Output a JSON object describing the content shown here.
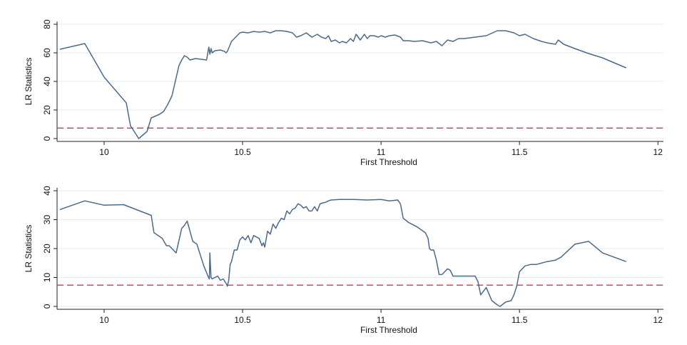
{
  "chart_data": [
    {
      "type": "line",
      "xlabel": "First Threshold",
      "ylabel": "LR Statistics",
      "xlim": [
        9.83,
        12.02
      ],
      "ylim": [
        -2,
        82
      ],
      "xticks": [
        10,
        10.5,
        11,
        11.5,
        12
      ],
      "xtick_labels": [
        "10",
        "10.5",
        "11",
        "11.5",
        "12"
      ],
      "yticks": [
        0,
        20,
        40,
        60,
        80
      ],
      "ytick_labels": [
        "0",
        "20",
        "40",
        "60",
        "80"
      ],
      "grid": true,
      "reference_line": {
        "y": 7.35,
        "style": "dashed",
        "color": "#c8385a"
      },
      "colors": {
        "series": "#4a6a8c"
      },
      "series": [
        {
          "x": [
            9.84,
            9.93,
            10.0,
            10.08,
            10.095,
            10.125,
            10.155,
            10.17,
            10.2,
            10.215,
            10.23,
            10.245,
            10.27,
            10.28,
            10.29,
            10.3,
            10.31,
            10.33,
            10.35,
            10.37,
            10.378,
            10.382,
            10.386,
            10.39,
            10.4,
            10.42,
            10.435,
            10.44,
            10.445,
            10.46,
            10.47,
            10.48,
            10.49,
            10.5,
            10.52,
            10.54,
            10.56,
            10.58,
            10.6,
            10.62,
            10.64,
            10.66,
            10.68,
            10.695,
            10.71,
            10.73,
            10.75,
            10.77,
            10.785,
            10.8,
            10.81,
            10.82,
            10.835,
            10.85,
            10.86,
            10.875,
            10.89,
            10.9,
            10.91,
            10.925,
            10.94,
            10.95,
            10.96,
            10.975,
            10.99,
            11.0,
            11.015,
            11.03,
            11.05,
            11.07,
            11.08,
            11.1,
            11.12,
            11.15,
            11.18,
            11.2,
            11.22,
            11.24,
            11.26,
            11.28,
            11.3,
            11.34,
            11.38,
            11.42,
            11.45,
            11.48,
            11.5,
            11.52,
            11.55,
            11.58,
            11.6,
            11.63,
            11.64,
            11.66,
            11.7,
            11.75,
            11.8,
            11.885
          ],
          "y": [
            62.5,
            66.5,
            43,
            25,
            9,
            0,
            5,
            14.5,
            17,
            19,
            24,
            30,
            51,
            55,
            58,
            57,
            55,
            56,
            55.5,
            55,
            64,
            59,
            63,
            60,
            61.5,
            62,
            61,
            60,
            61,
            68,
            70,
            72,
            74,
            74.5,
            74,
            75,
            74.5,
            75,
            74,
            75.5,
            75.5,
            75,
            74,
            71,
            72,
            74,
            71,
            73,
            71,
            70,
            72,
            68,
            69,
            67,
            68,
            67,
            70,
            68,
            73,
            69,
            73,
            70,
            72,
            72,
            71,
            72,
            71,
            72,
            72.5,
            71,
            68.5,
            68.5,
            68,
            68.5,
            67,
            68,
            65,
            69,
            68,
            70,
            70,
            71,
            72,
            75.5,
            75.5,
            74,
            72,
            73,
            70,
            68,
            67,
            66,
            69,
            66,
            63,
            59.5,
            56.5,
            49.5
          ]
        }
      ]
    },
    {
      "type": "line",
      "xlabel": "First Threshold",
      "ylabel": "LR Statistics",
      "xlim": [
        9.83,
        12.02
      ],
      "ylim": [
        -1,
        41
      ],
      "xticks": [
        10,
        10.5,
        11,
        11.5,
        12
      ],
      "xtick_labels": [
        "10",
        "10.5",
        "11",
        "11.5",
        "12"
      ],
      "yticks": [
        0,
        10,
        20,
        30,
        40
      ],
      "ytick_labels": [
        "0",
        "10",
        "20",
        "30",
        "40"
      ],
      "grid": true,
      "reference_line": {
        "y": 7.35,
        "style": "dashed",
        "color": "#c8385a"
      },
      "colors": {
        "series": "#4a6a8c"
      },
      "series": [
        {
          "x": [
            9.84,
            9.93,
            10.0,
            10.07,
            10.17,
            10.18,
            10.21,
            10.225,
            10.235,
            10.26,
            10.28,
            10.29,
            10.3,
            10.32,
            10.335,
            10.36,
            10.375,
            10.38,
            10.382,
            10.386,
            10.39,
            10.4,
            10.41,
            10.42,
            10.43,
            10.44,
            10.445,
            10.45,
            10.455,
            10.46,
            10.47,
            10.48,
            10.49,
            10.5,
            10.51,
            10.52,
            10.53,
            10.54,
            10.55,
            10.56,
            10.57,
            10.575,
            10.58,
            10.59,
            10.6,
            10.61,
            10.62,
            10.63,
            10.64,
            10.65,
            10.66,
            10.67,
            10.68,
            10.69,
            10.7,
            10.71,
            10.72,
            10.73,
            10.74,
            10.75,
            10.76,
            10.77,
            10.78,
            10.79,
            10.8,
            10.81,
            10.82,
            10.85,
            10.9,
            10.95,
            11.0,
            11.03,
            11.06,
            11.07,
            11.08,
            11.1,
            11.13,
            11.16,
            11.17,
            11.175,
            11.18,
            11.19,
            11.2,
            11.21,
            11.22,
            11.23,
            11.24,
            11.25,
            11.26,
            11.3,
            11.34,
            11.35,
            11.36,
            11.38,
            11.4,
            11.42,
            11.43,
            11.45,
            11.47,
            11.48,
            11.49,
            11.5,
            11.52,
            11.54,
            11.56,
            11.6,
            11.63,
            11.65,
            11.7,
            11.75,
            11.8,
            11.885
          ],
          "y": [
            33.5,
            36.5,
            35,
            35.2,
            31.5,
            25.5,
            23.5,
            21,
            21,
            18.5,
            27,
            28,
            29.5,
            22.5,
            21.5,
            14,
            10.5,
            9.5,
            18.5,
            10,
            9.5,
            10,
            10.5,
            9,
            9.5,
            8,
            7,
            9,
            14.5,
            15.5,
            19.5,
            19.5,
            23,
            24,
            23,
            24.5,
            22,
            24.5,
            24,
            23.5,
            21,
            22,
            20.5,
            26,
            25,
            28.5,
            27,
            29,
            30.5,
            30,
            33,
            32,
            33.5,
            34,
            35.5,
            35,
            34,
            34.5,
            33,
            33,
            34.5,
            33,
            35.5,
            35.8,
            36,
            36.5,
            36.8,
            37,
            37,
            36.8,
            37,
            36.5,
            36.8,
            35.5,
            30.5,
            29,
            27.5,
            25.5,
            23.5,
            20,
            19.5,
            19.5,
            16,
            11,
            11,
            12,
            13,
            12.5,
            10.5,
            10.5,
            10.5,
            8.5,
            4,
            6.5,
            2,
            0.5,
            0,
            1.5,
            2,
            4,
            7,
            12,
            14,
            14.5,
            14.5,
            15.5,
            16,
            17,
            21.5,
            22.5,
            18.5,
            15.5
          ]
        }
      ]
    }
  ]
}
